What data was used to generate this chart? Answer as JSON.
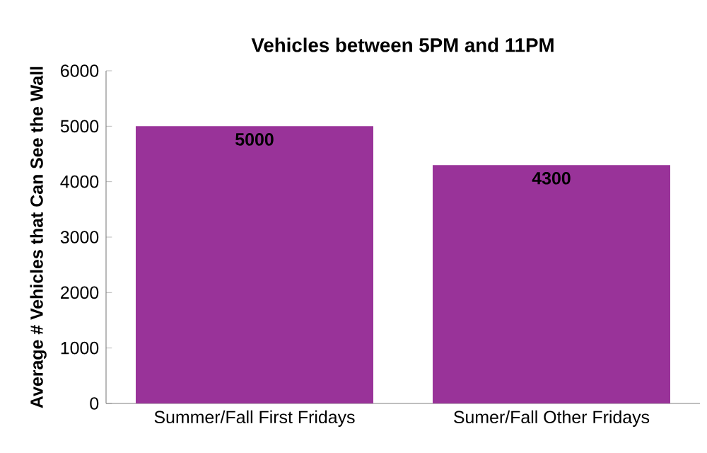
{
  "chart_data": {
    "type": "bar",
    "title": "Vehicles between 5PM and 11PM",
    "ylabel": "Average # Vehicles that Can See the Wall",
    "categories": [
      "Summer/Fall First Fridays",
      "Sumer/Fall Other Fridays"
    ],
    "values": [
      5000,
      4300
    ],
    "color": "#993399",
    "ylim": [
      0,
      6000
    ],
    "yticks": [
      0,
      1000,
      2000,
      3000,
      4000,
      5000,
      6000
    ],
    "data_labels": true,
    "grid": false
  }
}
